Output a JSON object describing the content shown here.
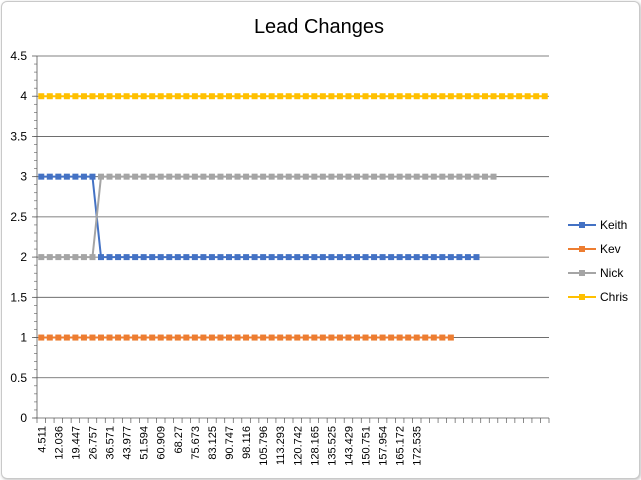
{
  "chart_data": {
    "type": "line",
    "title": "Lead Changes",
    "xlabel": "",
    "ylabel": "",
    "ylim": [
      0,
      4.5
    ],
    "yticks": [
      "0",
      "0.5",
      "1",
      "1.5",
      "2",
      "2.5",
      "3",
      "3.5",
      "4",
      "4.5"
    ],
    "x_tick_labels": [
      "4.511",
      "12.036",
      "19.447",
      "26.757",
      "36.571",
      "43.977",
      "51.594",
      "60.909",
      "68.27",
      "75.673",
      "83.125",
      "90.747",
      "98.116",
      "105.796",
      "113.293",
      "120.742",
      "128.165",
      "135.525",
      "143.429",
      "150.751",
      "157.954",
      "165.172",
      "172.535"
    ],
    "num_categories": 60,
    "grid": true,
    "legend_position": "right",
    "series": [
      {
        "name": "Keith",
        "color": "#4472C4",
        "values": [
          3,
          3,
          3,
          3,
          3,
          3,
          3,
          2,
          2,
          2,
          2,
          2,
          2,
          2,
          2,
          2,
          2,
          2,
          2,
          2,
          2,
          2,
          2,
          2,
          2,
          2,
          2,
          2,
          2,
          2,
          2,
          2,
          2,
          2,
          2,
          2,
          2,
          2,
          2,
          2,
          2,
          2,
          2,
          2,
          2,
          2,
          2,
          2,
          2,
          2,
          2,
          2
        ]
      },
      {
        "name": "Kev",
        "color": "#ED7D31",
        "values": [
          1,
          1,
          1,
          1,
          1,
          1,
          1,
          1,
          1,
          1,
          1,
          1,
          1,
          1,
          1,
          1,
          1,
          1,
          1,
          1,
          1,
          1,
          1,
          1,
          1,
          1,
          1,
          1,
          1,
          1,
          1,
          1,
          1,
          1,
          1,
          1,
          1,
          1,
          1,
          1,
          1,
          1,
          1,
          1,
          1,
          1,
          1,
          1,
          1
        ]
      },
      {
        "name": "Nick",
        "color": "#A5A5A5",
        "values": [
          2,
          2,
          2,
          2,
          2,
          2,
          2,
          3,
          3,
          3,
          3,
          3,
          3,
          3,
          3,
          3,
          3,
          3,
          3,
          3,
          3,
          3,
          3,
          3,
          3,
          3,
          3,
          3,
          3,
          3,
          3,
          3,
          3,
          3,
          3,
          3,
          3,
          3,
          3,
          3,
          3,
          3,
          3,
          3,
          3,
          3,
          3,
          3,
          3,
          3,
          3,
          3,
          3,
          3
        ]
      },
      {
        "name": "Chris",
        "color": "#FFC000",
        "values": [
          4,
          4,
          4,
          4,
          4,
          4,
          4,
          4,
          4,
          4,
          4,
          4,
          4,
          4,
          4,
          4,
          4,
          4,
          4,
          4,
          4,
          4,
          4,
          4,
          4,
          4,
          4,
          4,
          4,
          4,
          4,
          4,
          4,
          4,
          4,
          4,
          4,
          4,
          4,
          4,
          4,
          4,
          4,
          4,
          4,
          4,
          4,
          4,
          4,
          4,
          4,
          4,
          4,
          4,
          4,
          4,
          4,
          4,
          4,
          4
        ]
      }
    ]
  }
}
